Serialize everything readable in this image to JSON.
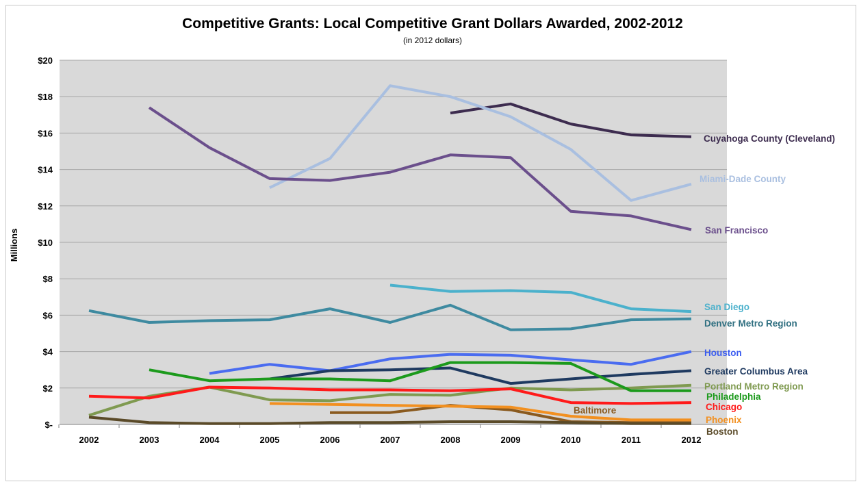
{
  "chart_data": {
    "type": "line",
    "title": "Competitive Grants: Local Competitive Grant Dollars Awarded, 2002-2012",
    "subtitle": "(in 2012 dollars)",
    "xlabel": "",
    "ylabel": "Millions",
    "x": [
      "2002",
      "2003",
      "2004",
      "2005",
      "2006",
      "2007",
      "2008",
      "2009",
      "2010",
      "2011",
      "2012"
    ],
    "ylim": [
      0,
      20
    ],
    "yticks": [
      {
        "value": 0,
        "label": "$-"
      },
      {
        "value": 2,
        "label": "$2"
      },
      {
        "value": 4,
        "label": "$4"
      },
      {
        "value": 6,
        "label": "$6"
      },
      {
        "value": 8,
        "label": "$8"
      },
      {
        "value": 10,
        "label": "$10"
      },
      {
        "value": 12,
        "label": "$12"
      },
      {
        "value": 14,
        "label": "$14"
      },
      {
        "value": 16,
        "label": "$16"
      },
      {
        "value": 18,
        "label": "$18"
      },
      {
        "value": 20,
        "label": "$20"
      }
    ],
    "grid": true,
    "plot_background": "#d9d9d9",
    "legend": "labels at line ends (right)",
    "series": [
      {
        "name": "Cuyahoga County (Cleveland)",
        "color": "#3d2c4f",
        "label_color": "#3d2c4f",
        "values": [
          null,
          null,
          null,
          null,
          null,
          null,
          17.1,
          17.6,
          16.5,
          15.9,
          15.8
        ]
      },
      {
        "name": "Miami-Dade County",
        "color": "#a9bfe0",
        "label_color": "#a9bfe0",
        "values": [
          null,
          null,
          null,
          13.0,
          14.6,
          18.6,
          18.0,
          16.9,
          15.1,
          12.3,
          13.2
        ]
      },
      {
        "name": "San Francisco",
        "color": "#6b4f8c",
        "label_color": "#6b4f8c",
        "values": [
          null,
          17.4,
          15.2,
          13.5,
          13.4,
          13.85,
          14.8,
          14.65,
          11.7,
          11.45,
          10.7
        ]
      },
      {
        "name": "San Diego",
        "color": "#4bb1cc",
        "label_color": "#4bb1cc",
        "values": [
          null,
          null,
          null,
          null,
          null,
          7.65,
          7.3,
          7.35,
          7.25,
          6.35,
          6.2
        ]
      },
      {
        "name": "Denver Metro Region",
        "color": "#3e8aa0",
        "label_color": "#2f6f80",
        "values": [
          6.25,
          5.6,
          5.7,
          5.75,
          6.35,
          5.6,
          6.55,
          5.2,
          5.25,
          5.75,
          5.8
        ]
      },
      {
        "name": "Houston",
        "color": "#4a6cf0",
        "label_color": "#3a5cf0",
        "values": [
          null,
          null,
          2.8,
          3.3,
          2.95,
          3.6,
          3.85,
          3.8,
          3.55,
          3.3,
          4.0
        ]
      },
      {
        "name": "Greater Columbus Area",
        "color": "#1f3a60",
        "label_color": "#1f3a60",
        "values": [
          null,
          null,
          null,
          2.5,
          2.95,
          3.0,
          3.1,
          2.25,
          2.5,
          2.75,
          2.95
        ]
      },
      {
        "name": "Portland Metro Region",
        "color": "#7f9a50",
        "label_color": "#7f9a50",
        "values": [
          0.5,
          1.55,
          2.05,
          1.35,
          1.3,
          1.65,
          1.6,
          2.0,
          1.9,
          2.0,
          2.15
        ]
      },
      {
        "name": "Philadelphia",
        "color": "#1c9a1c",
        "label_color": "#1c9a1c",
        "values": [
          null,
          3.0,
          2.4,
          2.5,
          2.5,
          2.4,
          3.4,
          3.4,
          3.35,
          1.85,
          1.85
        ]
      },
      {
        "name": "Chicago",
        "color": "#ff1a1a",
        "label_color": "#ff1a1a",
        "values": [
          1.55,
          1.45,
          2.05,
          2.0,
          1.9,
          1.9,
          1.85,
          1.95,
          1.2,
          1.15,
          1.2
        ]
      },
      {
        "name": "Baltimore",
        "color": "#8a5a1f",
        "label_color": "#8a5a1f",
        "values": [
          null,
          null,
          null,
          null,
          0.65,
          0.65,
          1.05,
          0.8,
          0.15,
          0.1,
          0.1
        ]
      },
      {
        "name": "Phoenix",
        "color": "#f29020",
        "label_color": "#f29020",
        "values": [
          null,
          null,
          null,
          1.15,
          1.1,
          1.05,
          1.0,
          0.95,
          0.45,
          0.25,
          0.25
        ]
      },
      {
        "name": "Boston",
        "color": "#5a4a28",
        "label_color": "#5a4a28",
        "values": [
          0.4,
          0.1,
          0.05,
          0.05,
          0.1,
          0.1,
          0.15,
          0.15,
          0.1,
          0.05,
          0.05
        ]
      }
    ]
  }
}
